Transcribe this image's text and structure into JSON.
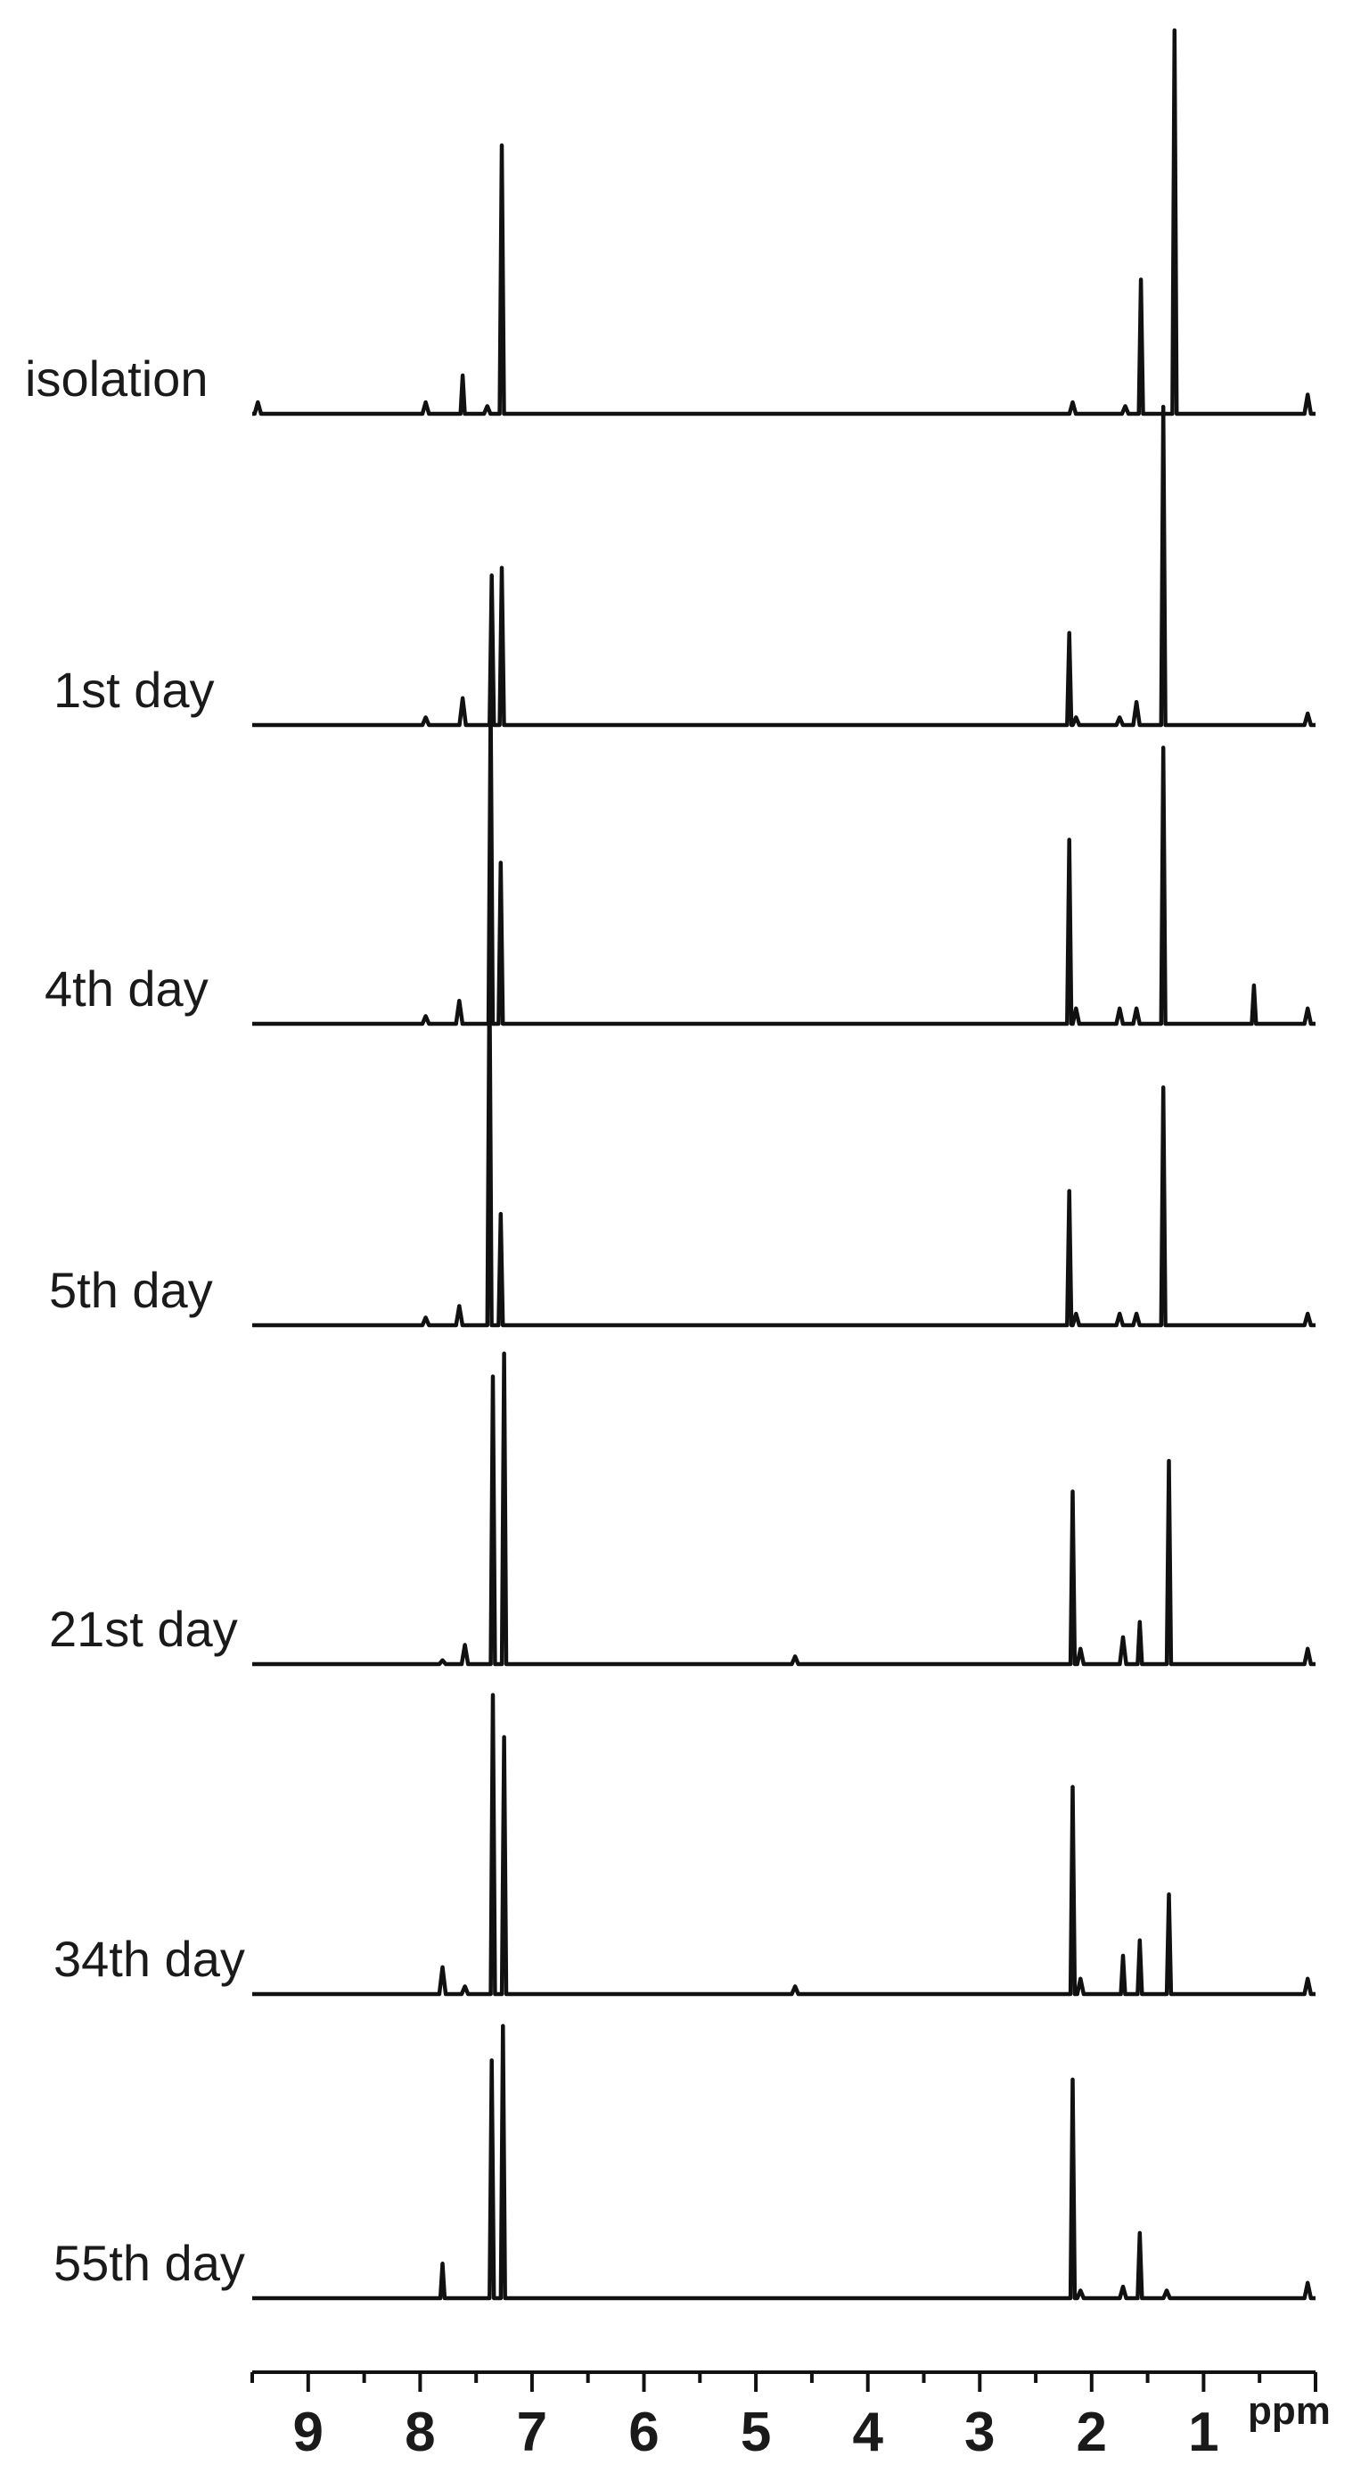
{
  "chart_data": {
    "type": "line",
    "title": "",
    "xlabel": "ppm",
    "ylabel": "",
    "xlim": [
      9.5,
      0
    ],
    "x_reversed": true,
    "grid": false,
    "legend": "none",
    "xticks": [
      9,
      8,
      7,
      6,
      5,
      4,
      3,
      2,
      1
    ],
    "series": [
      {
        "name": "isolation",
        "peaks": [
          {
            "ppm": 9.45,
            "height": 3
          },
          {
            "ppm": 7.95,
            "height": 3
          },
          {
            "ppm": 7.62,
            "height": 10
          },
          {
            "ppm": 7.4,
            "height": 2
          },
          {
            "ppm": 7.27,
            "height": 70
          },
          {
            "ppm": 2.17,
            "height": 3
          },
          {
            "ppm": 1.7,
            "height": 2
          },
          {
            "ppm": 1.56,
            "height": 35
          },
          {
            "ppm": 1.26,
            "height": 100
          },
          {
            "ppm": 0.07,
            "height": 5
          }
        ]
      },
      {
        "name": "1st day",
        "peaks": [
          {
            "ppm": 7.95,
            "height": 2
          },
          {
            "ppm": 7.62,
            "height": 7
          },
          {
            "ppm": 7.36,
            "height": 39
          },
          {
            "ppm": 7.27,
            "height": 41
          },
          {
            "ppm": 2.2,
            "height": 24
          },
          {
            "ppm": 2.14,
            "height": 2
          },
          {
            "ppm": 1.75,
            "height": 2
          },
          {
            "ppm": 1.6,
            "height": 6
          },
          {
            "ppm": 1.36,
            "height": 83
          },
          {
            "ppm": 0.07,
            "height": 3
          }
        ]
      },
      {
        "name": "4th day",
        "peaks": [
          {
            "ppm": 7.95,
            "height": 2
          },
          {
            "ppm": 7.65,
            "height": 6
          },
          {
            "ppm": 7.37,
            "height": 84
          },
          {
            "ppm": 7.28,
            "height": 42
          },
          {
            "ppm": 2.2,
            "height": 48
          },
          {
            "ppm": 2.14,
            "height": 4
          },
          {
            "ppm": 1.75,
            "height": 4
          },
          {
            "ppm": 1.6,
            "height": 4
          },
          {
            "ppm": 1.36,
            "height": 72
          },
          {
            "ppm": 0.55,
            "height": 10
          },
          {
            "ppm": 0.07,
            "height": 4
          }
        ]
      },
      {
        "name": "5th day",
        "peaks": [
          {
            "ppm": 7.95,
            "height": 2
          },
          {
            "ppm": 7.65,
            "height": 5
          },
          {
            "ppm": 7.38,
            "height": 92
          },
          {
            "ppm": 7.28,
            "height": 29
          },
          {
            "ppm": 2.2,
            "height": 35
          },
          {
            "ppm": 2.14,
            "height": 3
          },
          {
            "ppm": 1.75,
            "height": 3
          },
          {
            "ppm": 1.6,
            "height": 3
          },
          {
            "ppm": 1.36,
            "height": 62
          },
          {
            "ppm": 0.07,
            "height": 3
          }
        ]
      },
      {
        "name": "21st day",
        "peaks": [
          {
            "ppm": 7.8,
            "height": 1
          },
          {
            "ppm": 7.6,
            "height": 5
          },
          {
            "ppm": 7.35,
            "height": 75
          },
          {
            "ppm": 7.25,
            "height": 81
          },
          {
            "ppm": 4.65,
            "height": 2
          },
          {
            "ppm": 2.17,
            "height": 45
          },
          {
            "ppm": 2.1,
            "height": 4
          },
          {
            "ppm": 1.72,
            "height": 7
          },
          {
            "ppm": 1.57,
            "height": 11
          },
          {
            "ppm": 1.31,
            "height": 53
          },
          {
            "ppm": 0.07,
            "height": 4
          }
        ]
      },
      {
        "name": "34th day",
        "peaks": [
          {
            "ppm": 7.8,
            "height": 7
          },
          {
            "ppm": 7.6,
            "height": 2
          },
          {
            "ppm": 7.35,
            "height": 78
          },
          {
            "ppm": 7.25,
            "height": 67
          },
          {
            "ppm": 4.65,
            "height": 2
          },
          {
            "ppm": 2.17,
            "height": 54
          },
          {
            "ppm": 2.1,
            "height": 4
          },
          {
            "ppm": 1.72,
            "height": 10
          },
          {
            "ppm": 1.57,
            "height": 14
          },
          {
            "ppm": 1.31,
            "height": 26
          },
          {
            "ppm": 0.07,
            "height": 4
          }
        ]
      },
      {
        "name": "55th day",
        "peaks": [
          {
            "ppm": 7.8,
            "height": 9
          },
          {
            "ppm": 7.36,
            "height": 62
          },
          {
            "ppm": 7.26,
            "height": 71
          },
          {
            "ppm": 2.17,
            "height": 57
          },
          {
            "ppm": 2.1,
            "height": 2
          },
          {
            "ppm": 1.72,
            "height": 3
          },
          {
            "ppm": 1.57,
            "height": 17
          },
          {
            "ppm": 1.33,
            "height": 2
          },
          {
            "ppm": 0.07,
            "height": 4
          }
        ]
      }
    ]
  }
}
